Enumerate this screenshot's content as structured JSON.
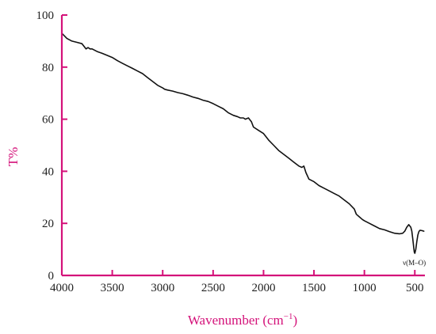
{
  "colors": {
    "axis": "#d4127a",
    "line": "#111111",
    "tick_text": "#222222"
  },
  "chart_data": {
    "type": "line",
    "title": "",
    "xlabel": "Wavenumber (cm",
    "xlabel_sup": "−1",
    "xlabel_end": ")",
    "ylabel": "T%",
    "xlim": [
      4000,
      400
    ],
    "ylim": [
      0,
      100
    ],
    "x_reversed": true,
    "grid": false,
    "legend": "none",
    "x_ticks": [
      4000,
      3500,
      3000,
      2500,
      2000,
      1500,
      1000,
      500
    ],
    "y_ticks": [
      0,
      20,
      40,
      60,
      80,
      100
    ],
    "annotations": [
      {
        "text": "ν(M–O)",
        "x": 505,
        "y": 4
      }
    ],
    "series": [
      {
        "x": [
          4000,
          3950,
          3900,
          3850,
          3800,
          3760,
          3740,
          3720,
          3700,
          3650,
          3600,
          3550,
          3500,
          3450,
          3400,
          3350,
          3300,
          3250,
          3200,
          3150,
          3100,
          3050,
          3000,
          2980,
          2950,
          2900,
          2850,
          2800,
          2750,
          2700,
          2650,
          2600,
          2550,
          2500,
          2450,
          2400,
          2350,
          2300,
          2260,
          2230,
          2200,
          2180,
          2150,
          2120,
          2100,
          2050,
          2000,
          1980,
          1950,
          1900,
          1850,
          1800,
          1750,
          1700,
          1650,
          1620,
          1600,
          1580,
          1550,
          1500,
          1450,
          1400,
          1350,
          1300,
          1250,
          1200,
          1150,
          1100,
          1080,
          1050,
          1020,
          1000,
          950,
          900,
          850,
          800,
          750,
          700,
          650,
          620,
          600,
          580,
          560,
          540,
          530,
          520,
          510,
          505,
          500,
          490,
          480,
          470,
          460,
          450,
          440,
          430,
          420,
          410
        ],
        "y": [
          93,
          91,
          90,
          89.5,
          89,
          87,
          87.5,
          87,
          87,
          86,
          85.3,
          84.5,
          83.7,
          82.5,
          81.5,
          80.5,
          79.5,
          78.5,
          77.5,
          76,
          74.5,
          73,
          72,
          71.5,
          71.2,
          70.8,
          70.2,
          69.8,
          69.2,
          68.5,
          68,
          67.3,
          66.8,
          66,
          65,
          64,
          62.5,
          61.5,
          61,
          60.5,
          60.5,
          60,
          60.5,
          59,
          57,
          55.7,
          54.5,
          53.5,
          52,
          50,
          48,
          46.5,
          45,
          43.5,
          42,
          41.5,
          42,
          39.5,
          37,
          36,
          34.5,
          33.5,
          32.5,
          31.5,
          30.5,
          29,
          27.5,
          25.5,
          23.5,
          22.5,
          21.5,
          21,
          20,
          19,
          18,
          17.5,
          16.8,
          16.2,
          16,
          16.2,
          17,
          18.5,
          19.5,
          18.5,
          17,
          14,
          10.5,
          9,
          8.5,
          10,
          13,
          15.5,
          16.8,
          17.3,
          17.3,
          17.2,
          17.1,
          17
        ]
      }
    ]
  }
}
